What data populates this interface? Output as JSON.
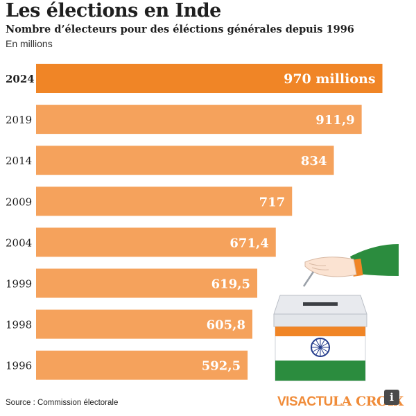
{
  "chart_data": {
    "type": "bar",
    "orientation": "horizontal",
    "title": "Les élections en Inde",
    "subtitle": "Nombre d’électeurs pour des éléctions générales depuis 1996",
    "unit": "En millions",
    "categories": [
      "2024",
      "2019",
      "2014",
      "2009",
      "2004",
      "1999",
      "1998",
      "1996"
    ],
    "values": [
      970,
      911.9,
      834,
      717,
      671.4,
      619.5,
      605.8,
      592.5
    ],
    "value_labels": [
      "970 millions",
      "911,9",
      "834",
      "717",
      "671,4",
      "619,5",
      "605,8",
      "592,5"
    ],
    "highlight": "2024",
    "colors": {
      "bar": "#f5a25c",
      "highlight": "#f08526",
      "label": "#ffffff"
    }
  },
  "footer": {
    "source": "Source : Commission électorale",
    "brand_prefix": "VISACTU",
    "brand_name": "LA CROIX",
    "info": "i"
  },
  "illustration": {
    "icon": "ballot-box-icon"
  }
}
